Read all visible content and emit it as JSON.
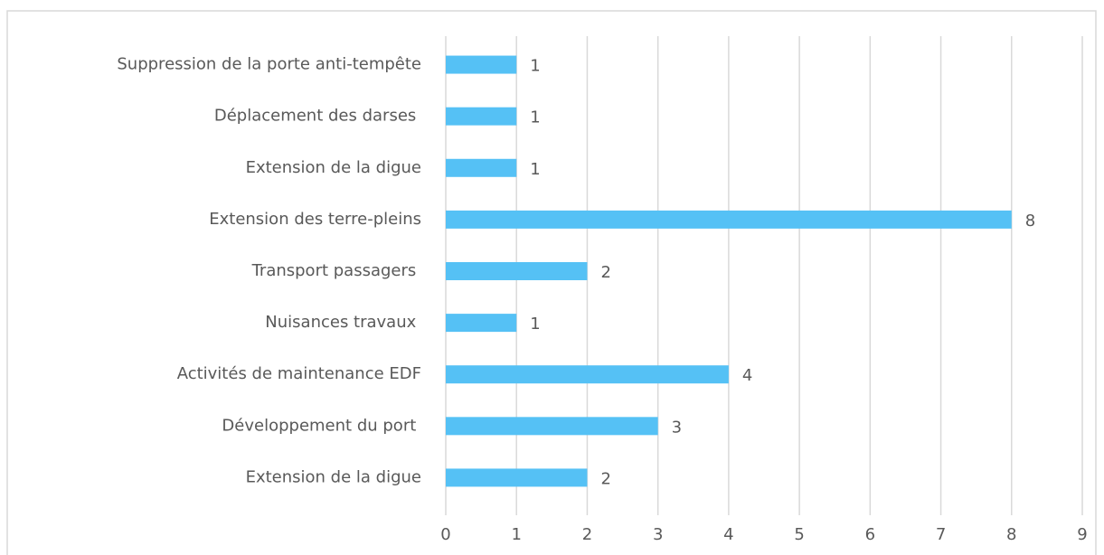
{
  "chart_data": {
    "type": "barh",
    "categories": [
      "Suppression de la porte anti-tempête",
      "Déplacement des darses ",
      "Extension de la digue",
      "Extension des terre-pleins",
      "Transport passagers ",
      "Nuisances travaux ",
      "Activités de maintenance EDF",
      "Développement du port ",
      "Extension de la digue"
    ],
    "values": [
      1,
      1,
      1,
      8,
      2,
      1,
      4,
      3,
      2
    ],
    "color": "#55c1f5",
    "xlim": [
      0,
      9
    ],
    "xticks": [
      0,
      1,
      2,
      3,
      4,
      5,
      6,
      7,
      8,
      9
    ],
    "grid": true
  }
}
